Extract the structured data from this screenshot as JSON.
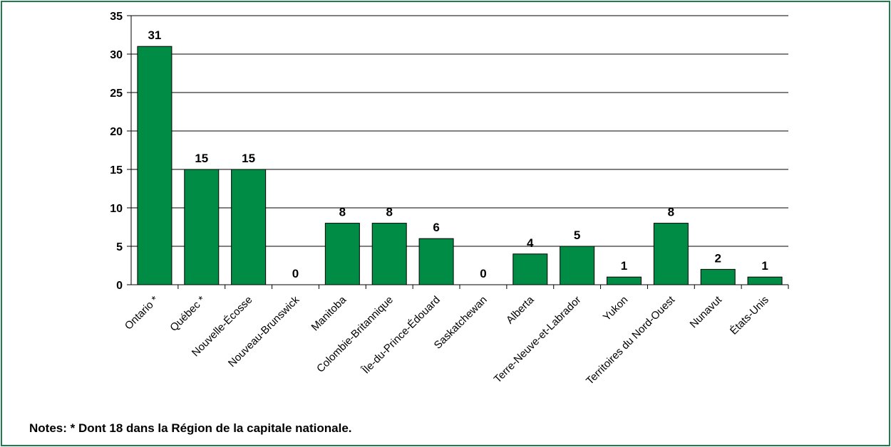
{
  "chart_data": {
    "type": "bar",
    "title": "",
    "xlabel": "",
    "ylabel": "",
    "ylim": [
      0,
      35
    ],
    "yticks": [
      0,
      5,
      10,
      15,
      20,
      25,
      30,
      35
    ],
    "grid": true,
    "categories": [
      "Ontario *",
      "Québec *",
      "Nouvelle-Écosse",
      "Nouveau-Brunswick",
      "Manitoba",
      "Colombie-Britannique",
      "Île-du-Prince-Édouard",
      "Saskatchewan",
      "Alberta",
      "Terre-Neuve-et-Labrador",
      "Yukon",
      "Territoires du Nord-Ouest",
      "Nunavut",
      "États-Unis"
    ],
    "values": [
      31,
      15,
      15,
      0,
      8,
      8,
      6,
      0,
      4,
      5,
      1,
      8,
      2,
      1
    ],
    "bar_color": "#008c45",
    "border_color": "#1e7d4f"
  },
  "notes": {
    "text": "Notes: * Dont 18 dans la Région de la capitale nationale."
  }
}
